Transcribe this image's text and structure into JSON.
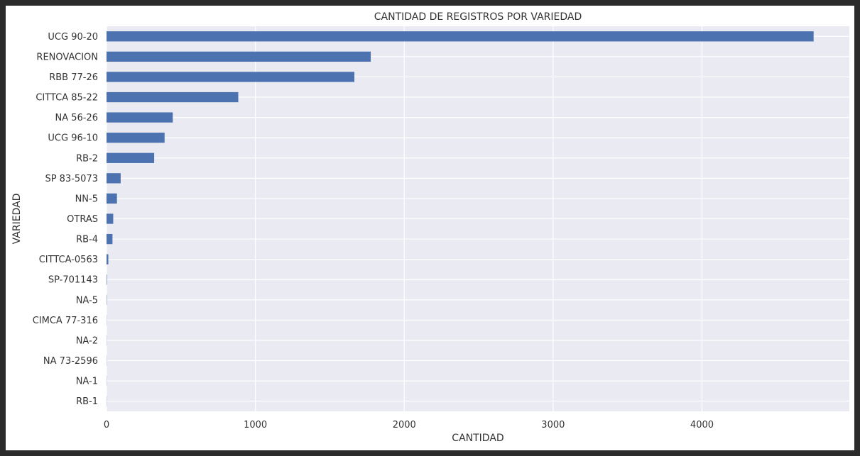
{
  "chart_data": {
    "type": "bar",
    "orientation": "horizontal",
    "title": "CANTIDAD DE REGISTROS POR VARIEDAD",
    "xlabel": "CANTIDAD",
    "ylabel": "VARIEDAD",
    "categories": [
      "UCG 90-20",
      "RENOVACION",
      "RBB 77-26",
      "CITTCA 85-22",
      "NA 56-26",
      "UCG 96-10",
      "RB-2",
      "SP 83-5073",
      "NN-5",
      "OTRAS",
      "RB-4",
      "CITTCA-0563",
      "SP-701143",
      "NA-5",
      "CIMCA 77-316",
      "NA-2",
      "NA 73-2596",
      "NA-1",
      "RB-1"
    ],
    "values": [
      4750,
      1775,
      1665,
      885,
      445,
      390,
      320,
      95,
      70,
      45,
      40,
      12,
      3,
      2,
      1,
      1,
      1,
      1,
      1
    ],
    "xlim": [
      0,
      4990
    ],
    "xticks": [
      0,
      1000,
      2000,
      3000,
      4000
    ],
    "grid": true,
    "colors": {
      "bar": "#4c72b0",
      "plot_bg": "#eaeaf2",
      "grid": "#ffffff",
      "text": "#333333"
    }
  }
}
